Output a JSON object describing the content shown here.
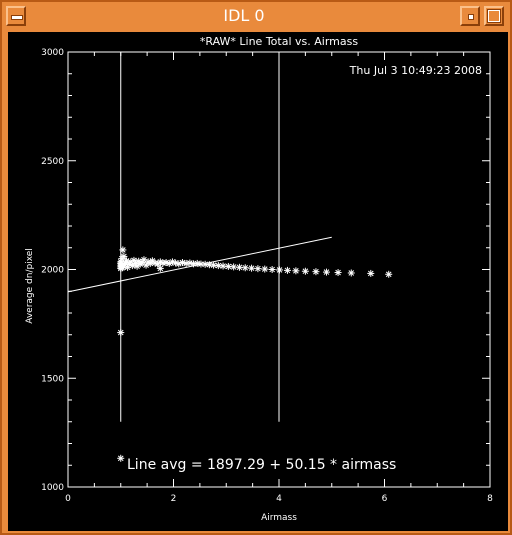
{
  "window": {
    "title": "IDL 0"
  },
  "chart_data": {
    "type": "scatter",
    "title": "*RAW* Line Total vs. Airmass",
    "timestamp": "Thu Jul  3 10:49:23 2008",
    "xlabel": "Airmass",
    "ylabel": "Average dn/pixel",
    "xlim": [
      0,
      8
    ],
    "ylim": [
      1000,
      3000
    ],
    "xticks": [
      "0",
      "2",
      "4",
      "6",
      "8"
    ],
    "yticks": [
      "1000",
      "1500",
      "2000",
      "2500",
      "3000"
    ],
    "fit_label": "Line avg = 1897.29 + 50.15 * airmass",
    "fit": {
      "intercept": 1897.29,
      "slope": 50.15,
      "x_range": [
        0,
        5
      ]
    },
    "vlines": [
      {
        "x": 1.0,
        "y_range": [
          1300,
          3000
        ]
      },
      {
        "x": 4.0,
        "y_range": [
          1300,
          3000
        ]
      }
    ],
    "points": [
      [
        1.0,
        1710
      ],
      [
        1.04,
        2090
      ],
      [
        1.02,
        2050
      ],
      [
        1.06,
        2060
      ],
      [
        1.0,
        2005
      ],
      [
        1.0,
        2012
      ],
      [
        1.0,
        2020
      ],
      [
        1.0,
        2028
      ],
      [
        1.0,
        2035
      ],
      [
        1.03,
        2008
      ],
      [
        1.05,
        2015
      ],
      [
        1.07,
        2022
      ],
      [
        1.09,
        2030
      ],
      [
        1.11,
        2040
      ],
      [
        1.13,
        2010
      ],
      [
        1.16,
        2025
      ],
      [
        1.19,
        2035
      ],
      [
        1.22,
        2018
      ],
      [
        1.25,
        2042
      ],
      [
        1.28,
        2028
      ],
      [
        1.31,
        2015
      ],
      [
        1.34,
        2038
      ],
      [
        1.37,
        2025
      ],
      [
        1.4,
        2032
      ],
      [
        1.44,
        2045
      ],
      [
        1.48,
        2020
      ],
      [
        1.52,
        2035
      ],
      [
        1.56,
        2028
      ],
      [
        1.6,
        2040
      ],
      [
        1.65,
        2030
      ],
      [
        1.7,
        2025
      ],
      [
        1.75,
        2035
      ],
      [
        1.8,
        2030
      ],
      [
        1.75,
        2005
      ],
      [
        1.86,
        2032
      ],
      [
        1.92,
        2028
      ],
      [
        1.98,
        2035
      ],
      [
        2.04,
        2030
      ],
      [
        2.1,
        2026
      ],
      [
        2.17,
        2032
      ],
      [
        2.24,
        2028
      ],
      [
        2.31,
        2030
      ],
      [
        2.38,
        2026
      ],
      [
        2.45,
        2028
      ],
      [
        2.52,
        2025
      ],
      [
        2.6,
        2024
      ],
      [
        2.68,
        2022
      ],
      [
        2.76,
        2020
      ],
      [
        2.85,
        2018
      ],
      [
        2.94,
        2016
      ],
      [
        3.04,
        2014
      ],
      [
        3.14,
        2012
      ],
      [
        3.25,
        2010
      ],
      [
        3.36,
        2008
      ],
      [
        3.48,
        2006
      ],
      [
        3.6,
        2004
      ],
      [
        3.73,
        2002
      ],
      [
        3.87,
        2000
      ],
      [
        4.01,
        1998
      ],
      [
        4.16,
        1996
      ],
      [
        4.32,
        1994
      ],
      [
        4.5,
        1992
      ],
      [
        4.7,
        1990
      ],
      [
        4.9,
        1988
      ],
      [
        5.12,
        1986
      ],
      [
        5.37,
        1984
      ],
      [
        5.74,
        1982
      ],
      [
        6.08,
        1978
      ],
      [
        1.0,
        1132
      ]
    ]
  }
}
